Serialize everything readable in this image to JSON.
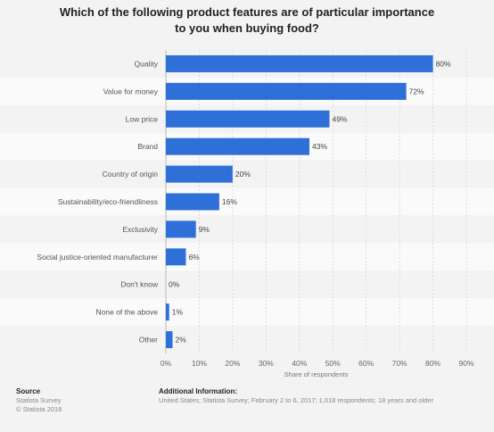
{
  "chart_data": {
    "type": "bar",
    "orientation": "horizontal",
    "title": "Which of the following product features are of particular importance to you when buying food?",
    "title_lines": [
      "Which of the following product features are of particular importance",
      "to you when buying food?"
    ],
    "categories": [
      "Quality",
      "Value for money",
      "Low price",
      "Brand",
      "Country of origin",
      "Sustainability/eco-friendliness",
      "Exclusivity",
      "Social justice-oriented manufacturer",
      "Don't know",
      "None of the above",
      "Other"
    ],
    "values": [
      80,
      72,
      49,
      43,
      20,
      16,
      9,
      6,
      0,
      1,
      2
    ],
    "value_suffix": "%",
    "xlabel": "Share of respondents",
    "xlim": [
      0,
      90
    ],
    "xticks": [
      "0%",
      "10%",
      "20%",
      "30%",
      "40%",
      "50%",
      "60%",
      "70%",
      "80%",
      "90%"
    ],
    "bar_color": "#2f70d8",
    "grid": true
  },
  "footer": {
    "source_head": "Source",
    "source_lines": [
      "Statista Survey",
      "© Statista 2018"
    ],
    "info_head": "Additional Information:",
    "info_text": "United States; Statista Survey; February 2 to 6, 2017; 1,018 respondents; 18 years and older"
  }
}
